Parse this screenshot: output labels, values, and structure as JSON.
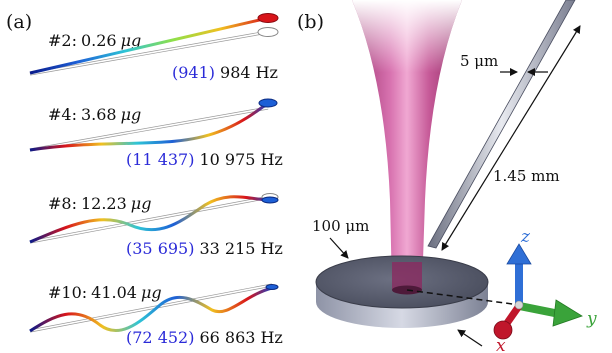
{
  "panel_a": {
    "label": "(a)",
    "modes": [
      {
        "mode": "#2:",
        "mass": "0.26",
        "unit": "μg",
        "sim": "(941)",
        "freq": "984",
        "hz": "Hz"
      },
      {
        "mode": "#4:",
        "mass": "3.68",
        "unit": "μg",
        "sim": "(11 437)",
        "freq": "10 975",
        "hz": "Hz"
      },
      {
        "mode": "#8:",
        "mass": "12.23",
        "unit": "μg",
        "sim": "(35 695)",
        "freq": "33 215",
        "hz": "Hz"
      },
      {
        "mode": "#10:",
        "mass": "41.04",
        "unit": "μg",
        "sim": "(72 452)",
        "freq": "66 863",
        "hz": "Hz"
      }
    ]
  },
  "panel_b": {
    "label": "(b)",
    "fiber_width": "5 μm",
    "fiber_length": "1.45 mm",
    "disk_thickness": "100 μm",
    "axes": {
      "x": "x",
      "y": "y",
      "z": "z"
    },
    "colors": {
      "beam": "#c0508f",
      "disk": "#5a5e6e",
      "x_axis": "#c0162b",
      "y_axis": "#3aa33a",
      "z_axis": "#2f6fd6"
    }
  }
}
